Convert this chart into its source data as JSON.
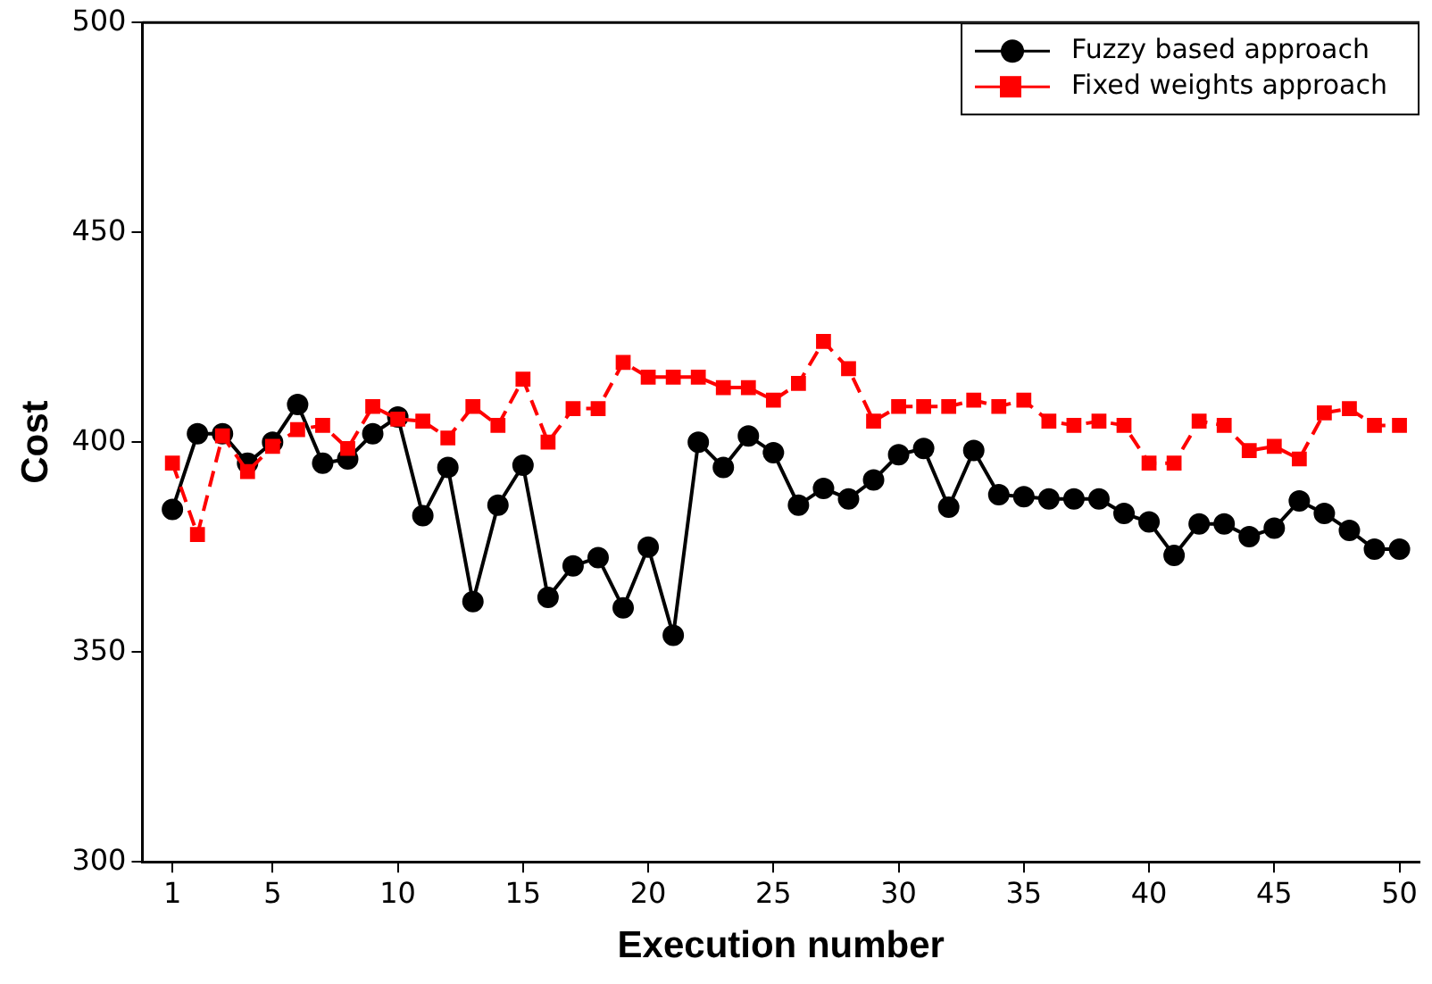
{
  "chart_data": {
    "type": "line",
    "xlabel": "Execution number",
    "ylabel": "Cost",
    "x": [
      1,
      2,
      3,
      4,
      5,
      6,
      7,
      8,
      9,
      10,
      11,
      12,
      13,
      14,
      15,
      16,
      17,
      18,
      19,
      20,
      21,
      22,
      23,
      24,
      25,
      26,
      27,
      28,
      29,
      30,
      31,
      32,
      33,
      34,
      35,
      36,
      37,
      38,
      39,
      40,
      41,
      42,
      43,
      44,
      45,
      46,
      47,
      48,
      49,
      50
    ],
    "series": [
      {
        "name": "Fuzzy based approach",
        "color": "#000000",
        "marker": "circle",
        "line_style": "solid",
        "values": [
          384,
          402,
          402,
          395,
          400,
          409,
          395,
          396,
          402,
          406,
          382.5,
          394,
          362,
          385,
          394.5,
          363,
          370.5,
          372.5,
          360.5,
          375,
          354,
          400,
          394,
          401.5,
          397.5,
          385,
          389,
          386.5,
          391,
          397,
          398.5,
          384.5,
          398,
          387.5,
          387,
          386.5,
          386.5,
          386.5,
          383,
          381,
          373,
          380.5,
          380.5,
          377.5,
          379.5,
          386,
          383,
          379,
          374.5,
          374.5
        ]
      },
      {
        "name": "Fixed weights approach",
        "color": "#ff0000",
        "marker": "square",
        "line_style": "dashed",
        "values": [
          395,
          378,
          401.5,
          393,
          399,
          403,
          404,
          398.5,
          408.5,
          405.5,
          405,
          401,
          408.5,
          404,
          415,
          400,
          408,
          408,
          419,
          415.5,
          415.5,
          415.5,
          413,
          413,
          410,
          414,
          424,
          417.5,
          405,
          408.5,
          408.5,
          408.5,
          410,
          408.5,
          410,
          405,
          404,
          405,
          404,
          395,
          395,
          405,
          404,
          398,
          399,
          396,
          407,
          408,
          404,
          404
        ]
      }
    ],
    "xlim": [
      -0.2,
      50.8
    ],
    "xticks": [
      1,
      5,
      10,
      15,
      20,
      25,
      30,
      35,
      40,
      45,
      50
    ],
    "ylim": [
      300,
      500
    ],
    "yticks": [
      300,
      350,
      400,
      450,
      500
    ],
    "grid": false,
    "legend": "top right"
  }
}
